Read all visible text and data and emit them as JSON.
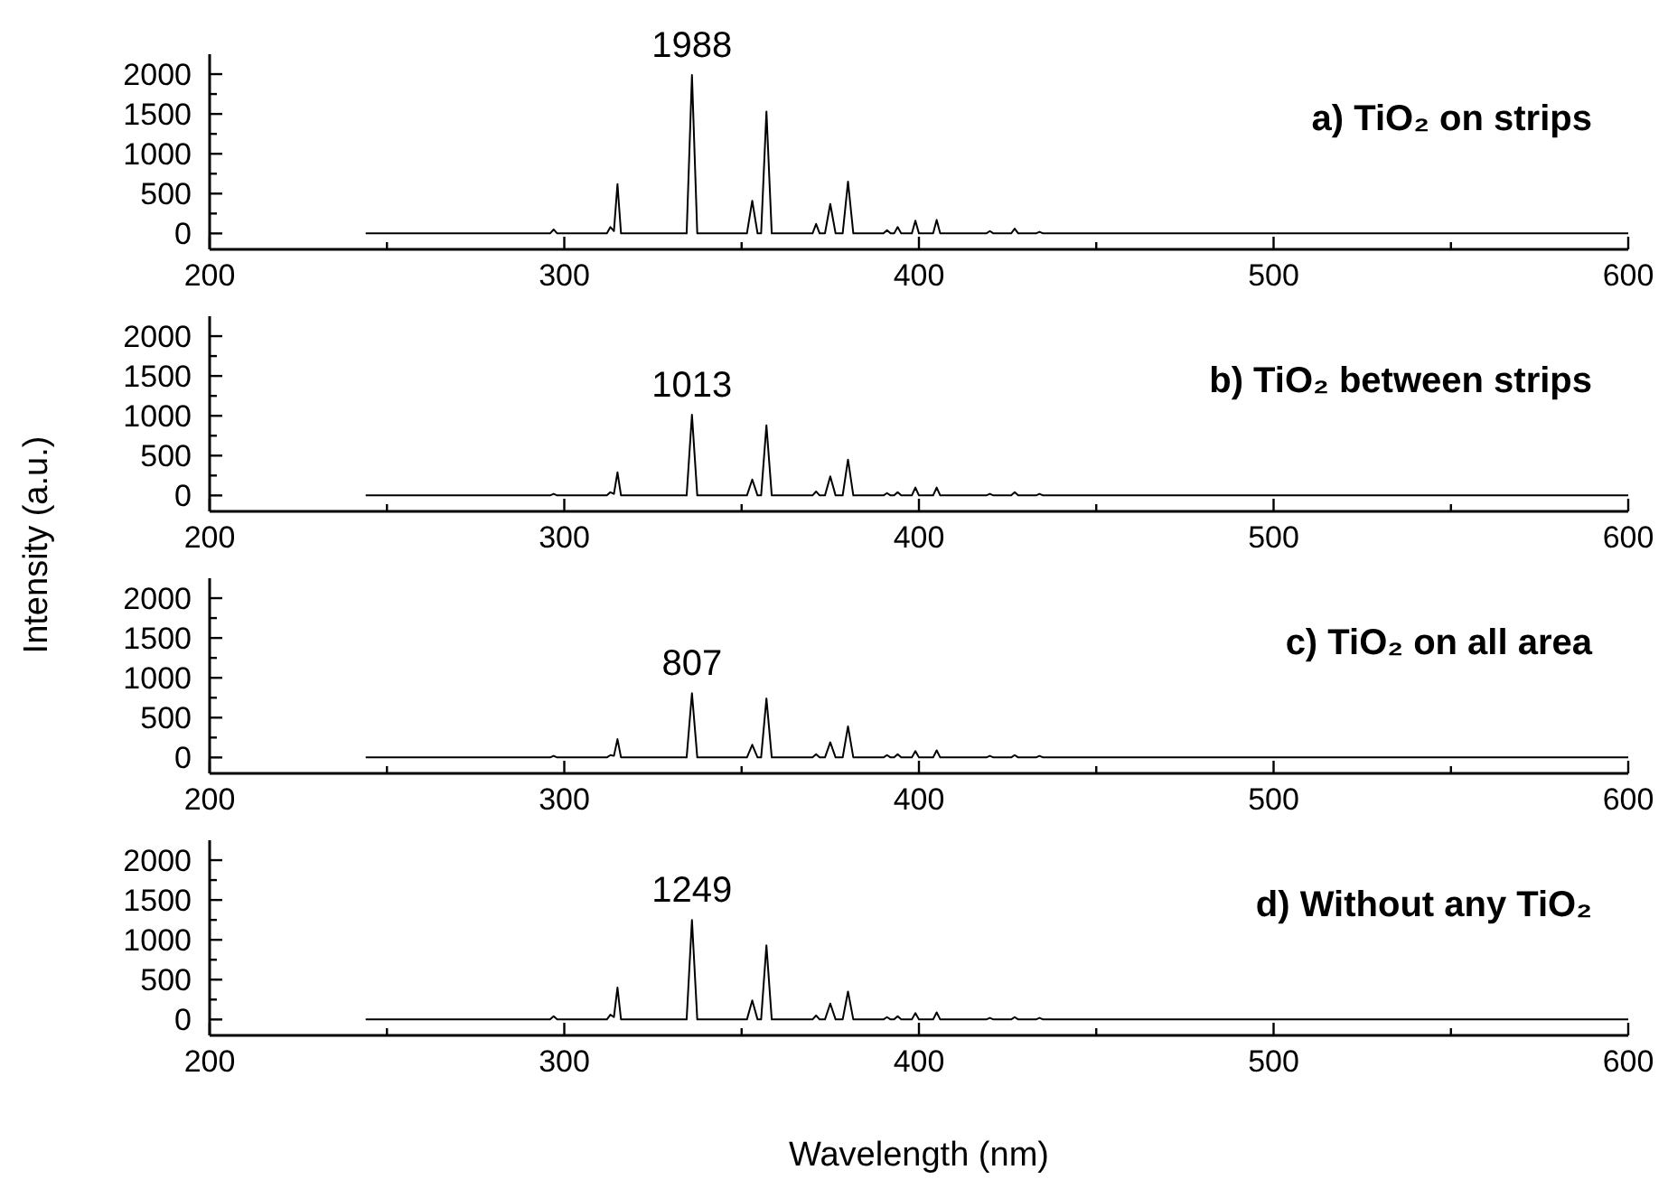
{
  "chart_data": [
    {
      "type": "line",
      "title": "a) TiO₂ on strips",
      "x": [
        244,
        296,
        297,
        298,
        312,
        313,
        314,
        315,
        316,
        334.5,
        336,
        337.5,
        351.5,
        353,
        354.5,
        355.5,
        357,
        358.5,
        370,
        371,
        372,
        373.5,
        375,
        376.5,
        378.5,
        380,
        381.5,
        390,
        391,
        392,
        393,
        394,
        395,
        398,
        399,
        400,
        404,
        405,
        406,
        419,
        420,
        421,
        426,
        427,
        428,
        433,
        434,
        435,
        600
      ],
      "series": [
        {
          "color": "#000000",
          "values": [
            0,
            0,
            50,
            0,
            0,
            80,
            30,
            620,
            0,
            0,
            1988,
            0,
            0,
            410,
            0,
            0,
            1530,
            0,
            0,
            120,
            0,
            0,
            370,
            0,
            0,
            650,
            0,
            0,
            40,
            0,
            0,
            80,
            0,
            0,
            160,
            0,
            0,
            170,
            0,
            0,
            30,
            0,
            0,
            60,
            0,
            0,
            20,
            0,
            0
          ]
        }
      ],
      "xlim": [
        200,
        600
      ],
      "xticks": [
        200,
        {
          "value": 250,
          "label": null
        },
        300,
        {
          "value": 350,
          "label": null
        },
        400,
        {
          "value": 450,
          "label": null
        },
        500,
        {
          "value": 550,
          "label": null
        },
        600
      ],
      "ylim": [
        -200,
        2250
      ],
      "yticks": [
        0,
        {
          "value": 250,
          "label": null
        },
        500,
        {
          "value": 750,
          "label": null
        },
        1000,
        {
          "value": 1250,
          "label": null
        },
        1500,
        {
          "value": 1750,
          "label": null
        },
        2000
      ],
      "annotations": [
        "1988"
      ]
    },
    {
      "type": "line",
      "title": "b) TiO₂ between strips",
      "ylabel": "Intensity (a.u.)",
      "x": [
        244,
        296,
        297,
        298,
        312,
        313,
        314,
        315,
        316,
        334.5,
        336,
        337.5,
        351.5,
        353,
        354.5,
        355.5,
        357,
        358.5,
        370,
        371,
        372,
        373.5,
        375,
        376.5,
        378.5,
        380,
        381.5,
        390,
        391,
        392,
        393,
        394,
        395,
        398,
        399,
        400,
        404,
        405,
        406,
        419,
        420,
        421,
        426,
        427,
        428,
        433,
        434,
        435,
        600
      ],
      "series": [
        {
          "color": "#000000",
          "values": [
            0,
            0,
            20,
            0,
            0,
            40,
            20,
            290,
            0,
            0,
            1013,
            0,
            0,
            200,
            0,
            0,
            880,
            0,
            0,
            50,
            0,
            0,
            240,
            0,
            0,
            450,
            0,
            0,
            30,
            0,
            0,
            40,
            0,
            0,
            100,
            0,
            0,
            100,
            0,
            0,
            20,
            0,
            0,
            40,
            0,
            0,
            20,
            0,
            0
          ]
        }
      ],
      "xlim": [
        200,
        600
      ],
      "xticks": [
        200,
        {
          "value": 250,
          "label": null
        },
        300,
        {
          "value": 350,
          "label": null
        },
        400,
        {
          "value": 450,
          "label": null
        },
        500,
        {
          "value": 550,
          "label": null
        },
        600
      ],
      "ylim": [
        -200,
        2250
      ],
      "yticks": [
        0,
        {
          "value": 250,
          "label": null
        },
        500,
        {
          "value": 750,
          "label": null
        },
        1000,
        {
          "value": 1250,
          "label": null
        },
        1500,
        {
          "value": 1750,
          "label": null
        },
        2000
      ],
      "annotations": [
        "1013"
      ]
    },
    {
      "type": "line",
      "title": "c) TiO₂ on all area",
      "x": [
        244,
        296,
        297,
        298,
        312,
        313,
        314,
        315,
        316,
        334.5,
        336,
        337.5,
        351.5,
        353,
        354.5,
        355.5,
        357,
        358.5,
        370,
        371,
        372,
        373.5,
        375,
        376.5,
        378.5,
        380,
        381.5,
        390,
        391,
        392,
        393,
        394,
        395,
        398,
        399,
        400,
        404,
        405,
        406,
        419,
        420,
        421,
        426,
        427,
        428,
        433,
        434,
        435,
        600
      ],
      "series": [
        {
          "color": "#000000",
          "values": [
            0,
            0,
            20,
            0,
            0,
            30,
            20,
            230,
            0,
            0,
            807,
            0,
            0,
            160,
            0,
            0,
            740,
            0,
            0,
            40,
            0,
            0,
            190,
            0,
            0,
            390,
            0,
            0,
            30,
            0,
            0,
            40,
            0,
            0,
            80,
            0,
            0,
            90,
            0,
            0,
            20,
            0,
            0,
            30,
            0,
            0,
            20,
            0,
            0
          ]
        }
      ],
      "xlim": [
        200,
        600
      ],
      "xticks": [
        200,
        {
          "value": 250,
          "label": null
        },
        300,
        {
          "value": 350,
          "label": null
        },
        400,
        {
          "value": 450,
          "label": null
        },
        500,
        {
          "value": 550,
          "label": null
        },
        600
      ],
      "ylim": [
        -200,
        2250
      ],
      "yticks": [
        0,
        {
          "value": 250,
          "label": null
        },
        500,
        {
          "value": 750,
          "label": null
        },
        1000,
        {
          "value": 1250,
          "label": null
        },
        1500,
        {
          "value": 1750,
          "label": null
        },
        2000
      ],
      "annotations": [
        "807"
      ]
    },
    {
      "type": "line",
      "title": "d) Without any TiO₂",
      "xlabel": "Wavelength (nm)",
      "x": [
        244,
        296,
        297,
        298,
        312,
        313,
        314,
        315,
        316,
        334.5,
        336,
        337.5,
        351.5,
        353,
        354.5,
        355.5,
        357,
        358.5,
        370,
        371,
        372,
        373.5,
        375,
        376.5,
        378.5,
        380,
        381.5,
        390,
        391,
        392,
        393,
        394,
        395,
        398,
        399,
        400,
        404,
        405,
        406,
        419,
        420,
        421,
        426,
        427,
        428,
        433,
        434,
        435,
        600
      ],
      "series": [
        {
          "color": "#000000",
          "values": [
            0,
            0,
            40,
            0,
            0,
            60,
            30,
            400,
            0,
            0,
            1249,
            0,
            0,
            240,
            0,
            0,
            930,
            0,
            0,
            50,
            0,
            0,
            200,
            0,
            0,
            350,
            0,
            0,
            30,
            0,
            0,
            40,
            0,
            0,
            80,
            0,
            0,
            90,
            0,
            0,
            20,
            0,
            0,
            30,
            0,
            0,
            20,
            0,
            0
          ]
        }
      ],
      "xlim": [
        200,
        600
      ],
      "xticks": [
        200,
        {
          "value": 250,
          "label": null
        },
        300,
        {
          "value": 350,
          "label": null
        },
        400,
        {
          "value": 450,
          "label": null
        },
        500,
        {
          "value": 550,
          "label": null
        },
        600
      ],
      "ylim": [
        -200,
        2250
      ],
      "yticks": [
        0,
        {
          "value": 250,
          "label": null
        },
        500,
        {
          "value": 750,
          "label": null
        },
        1000,
        {
          "value": 1250,
          "label": null
        },
        1500,
        {
          "value": 1750,
          "label": null
        },
        2000
      ],
      "annotations": [
        "1249"
      ]
    }
  ]
}
